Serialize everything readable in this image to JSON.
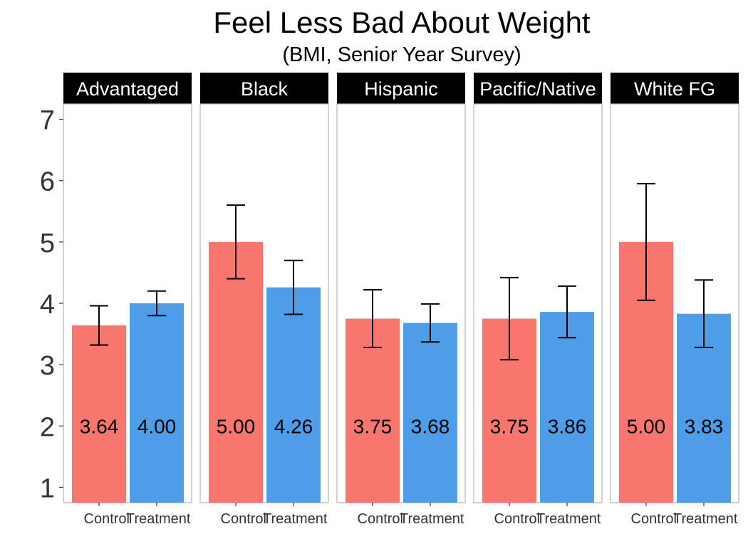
{
  "chart_data": {
    "type": "bar",
    "title": "Feel Less Bad About Weight",
    "subtitle": "(BMI, Senior Year Survey)",
    "ylim": [
      0.75,
      7.25
    ],
    "yticks": [
      1,
      2,
      3,
      4,
      5,
      6,
      7
    ],
    "categories": [
      "Control",
      "Treatment"
    ],
    "colors": {
      "Control": "#F8766D",
      "Treatment": "#4D9DE8"
    },
    "grid": false,
    "facets": [
      {
        "name": "Advantaged",
        "values": [
          3.64,
          4.0
        ],
        "labels": [
          "3.64",
          "4.00"
        ],
        "error_low": [
          3.32,
          3.8
        ],
        "error_high": [
          3.96,
          4.2
        ]
      },
      {
        "name": "Black",
        "values": [
          5.0,
          4.26
        ],
        "labels": [
          "5.00",
          "4.26"
        ],
        "error_low": [
          4.4,
          3.82
        ],
        "error_high": [
          5.6,
          4.7
        ]
      },
      {
        "name": "Hispanic",
        "values": [
          3.75,
          3.68
        ],
        "labels": [
          "3.75",
          "3.68"
        ],
        "error_low": [
          3.28,
          3.37
        ],
        "error_high": [
          4.22,
          3.99
        ]
      },
      {
        "name": "Pacific/Native",
        "values": [
          3.75,
          3.86
        ],
        "labels": [
          "3.75",
          "3.86"
        ],
        "error_low": [
          3.08,
          3.44
        ],
        "error_high": [
          4.42,
          4.28
        ]
      },
      {
        "name": "White FG",
        "values": [
          5.0,
          3.83
        ],
        "labels": [
          "5.00",
          "3.83"
        ],
        "error_low": [
          4.05,
          3.28
        ],
        "error_high": [
          5.95,
          4.38
        ]
      }
    ]
  }
}
